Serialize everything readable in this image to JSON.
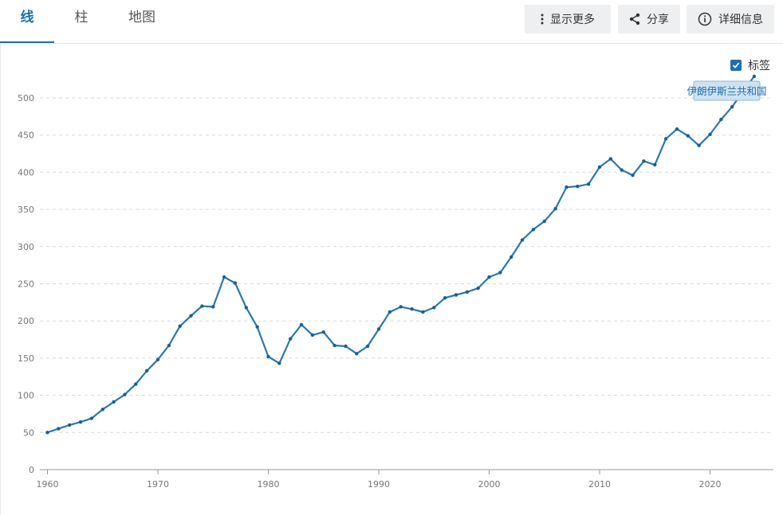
{
  "tabs": [
    {
      "label": "线"
    },
    {
      "label": "柱"
    },
    {
      "label": "地图"
    }
  ],
  "toolbar": {
    "more_label": "显示更多",
    "share_label": "分享",
    "details_label": "详细信息"
  },
  "labels_toggle": {
    "label": "标签",
    "checked": true
  },
  "colors": {
    "accent": "#1f6fb0",
    "line": "#2a78b2",
    "button_bg": "#eeeff1"
  },
  "chart_data": {
    "type": "line",
    "title": "",
    "xlabel": "",
    "ylabel": "",
    "xlim": [
      1960,
      2024
    ],
    "ylim": [
      0,
      520
    ],
    "x_ticks": [
      1960,
      1970,
      1980,
      1990,
      2000,
      2010,
      2020
    ],
    "y_ticks": [
      0,
      50,
      100,
      150,
      200,
      250,
      300,
      350,
      400,
      450,
      500
    ],
    "grid": true,
    "series": [
      {
        "name": "伊朗伊斯兰共和国",
        "x": [
          1960,
          1961,
          1962,
          1963,
          1964,
          1965,
          1966,
          1967,
          1968,
          1969,
          1970,
          1971,
          1972,
          1973,
          1974,
          1975,
          1976,
          1977,
          1978,
          1979,
          1980,
          1981,
          1982,
          1983,
          1984,
          1985,
          1986,
          1987,
          1988,
          1989,
          1990,
          1991,
          1992,
          1993,
          1994,
          1995,
          1996,
          1997,
          1998,
          1999,
          2000,
          2001,
          2002,
          2003,
          2004,
          2005,
          2006,
          2007,
          2008,
          2009,
          2010,
          2011,
          2012,
          2013,
          2014,
          2015,
          2016,
          2017,
          2018,
          2019,
          2020,
          2021,
          2022,
          2023,
          2024
        ],
        "values": [
          50,
          55,
          60,
          64,
          69,
          81,
          91,
          101,
          115,
          133,
          148,
          167,
          193,
          207,
          220,
          219,
          259,
          251,
          218,
          192,
          152,
          143,
          176,
          195,
          181,
          185,
          167,
          166,
          156,
          166,
          189,
          212,
          219,
          216,
          212,
          218,
          231,
          235,
          239,
          244,
          259,
          265,
          286,
          309,
          323,
          334,
          351,
          380,
          381,
          384,
          407,
          418,
          403,
          396,
          415,
          410,
          445,
          458,
          449,
          436,
          451,
          471,
          488,
          509,
          529
        ]
      }
    ]
  }
}
